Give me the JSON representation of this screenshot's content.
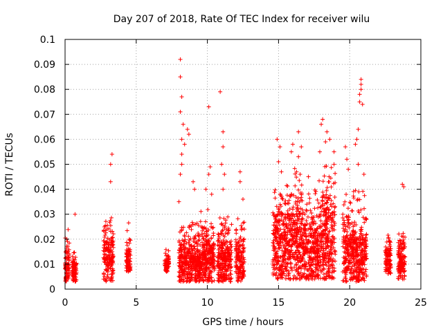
{
  "chart_data": {
    "type": "scatter",
    "title": "Day 207 of 2018, Rate Of TEC Index for receiver wilu",
    "xlabel": "GPS time / hours",
    "ylabel": "ROTI / TECUs",
    "xlim": [
      0,
      25
    ],
    "ylim": [
      0,
      0.1
    ],
    "x_ticks": [
      "0",
      "5",
      "10",
      "15",
      "20",
      "25"
    ],
    "y_ticks": [
      "0",
      "0.01",
      "0.02",
      "0.03",
      "0.04",
      "0.05",
      "0.06",
      "0.07",
      "0.08",
      "0.09",
      "0.1"
    ],
    "grid": true,
    "marker": "plus",
    "color": "#ff0000",
    "clusters": [
      {
        "x_range": [
          0.0,
          0.3
        ],
        "y_range": [
          0.003,
          0.026
        ],
        "center": 0.01
      },
      {
        "x_range": [
          0.5,
          0.8
        ],
        "y_range": [
          0.003,
          0.015
        ],
        "center": 0.008
      },
      {
        "x_range": [
          2.7,
          3.4
        ],
        "y_range": [
          0.003,
          0.029
        ],
        "center": 0.014
      },
      {
        "x_range": [
          4.3,
          4.6
        ],
        "y_range": [
          0.007,
          0.027
        ],
        "center": 0.012
      },
      {
        "x_range": [
          7.0,
          7.3
        ],
        "y_range": [
          0.007,
          0.016
        ],
        "center": 0.01
      },
      {
        "x_range": [
          8.0,
          8.5
        ],
        "y_range": [
          0.003,
          0.028
        ],
        "center": 0.012
      },
      {
        "x_range": [
          8.5,
          9.5
        ],
        "y_range": [
          0.003,
          0.028
        ],
        "center": 0.011
      },
      {
        "x_range": [
          9.5,
          10.5
        ],
        "y_range": [
          0.003,
          0.032
        ],
        "center": 0.012
      },
      {
        "x_range": [
          10.7,
          11.7
        ],
        "y_range": [
          0.003,
          0.03
        ],
        "center": 0.012
      },
      {
        "x_range": [
          12.0,
          12.6
        ],
        "y_range": [
          0.003,
          0.03
        ],
        "center": 0.011
      },
      {
        "x_range": [
          14.6,
          15.6
        ],
        "y_range": [
          0.004,
          0.043
        ],
        "center": 0.018
      },
      {
        "x_range": [
          15.6,
          16.8
        ],
        "y_range": [
          0.004,
          0.05
        ],
        "center": 0.02
      },
      {
        "x_range": [
          16.8,
          17.8
        ],
        "y_range": [
          0.004,
          0.04
        ],
        "center": 0.017
      },
      {
        "x_range": [
          17.8,
          19.0
        ],
        "y_range": [
          0.004,
          0.05
        ],
        "center": 0.02
      },
      {
        "x_range": [
          19.5,
          20.5
        ],
        "y_range": [
          0.003,
          0.04
        ],
        "center": 0.015
      },
      {
        "x_range": [
          20.5,
          21.2
        ],
        "y_range": [
          0.003,
          0.04
        ],
        "center": 0.014
      },
      {
        "x_range": [
          22.5,
          22.9
        ],
        "y_range": [
          0.006,
          0.025
        ],
        "center": 0.012
      },
      {
        "x_range": [
          23.4,
          23.9
        ],
        "y_range": [
          0.004,
          0.025
        ],
        "center": 0.011
      }
    ],
    "outliers": [
      [
        0.7,
        0.03
      ],
      [
        3.2,
        0.043
      ],
      [
        3.2,
        0.05
      ],
      [
        3.3,
        0.054
      ],
      [
        8.1,
        0.092
      ],
      [
        8.1,
        0.085
      ],
      [
        8.2,
        0.077
      ],
      [
        8.1,
        0.071
      ],
      [
        8.3,
        0.066
      ],
      [
        8.2,
        0.06
      ],
      [
        8.6,
        0.064
      ],
      [
        8.7,
        0.062
      ],
      [
        8.4,
        0.058
      ],
      [
        8.2,
        0.054
      ],
      [
        8.2,
        0.05
      ],
      [
        8.1,
        0.046
      ],
      [
        8.0,
        0.035
      ],
      [
        9.0,
        0.043
      ],
      [
        9.1,
        0.04
      ],
      [
        10.1,
        0.073
      ],
      [
        10.2,
        0.049
      ],
      [
        10.1,
        0.046
      ],
      [
        9.9,
        0.04
      ],
      [
        10.3,
        0.038
      ],
      [
        10.9,
        0.079
      ],
      [
        11.1,
        0.063
      ],
      [
        11.1,
        0.057
      ],
      [
        11.0,
        0.05
      ],
      [
        11.2,
        0.046
      ],
      [
        11.1,
        0.04
      ],
      [
        12.3,
        0.047
      ],
      [
        12.3,
        0.043
      ],
      [
        12.5,
        0.036
      ],
      [
        14.9,
        0.06
      ],
      [
        15.0,
        0.051
      ],
      [
        15.1,
        0.057
      ],
      [
        15.2,
        0.047
      ],
      [
        15.9,
        0.055
      ],
      [
        16.0,
        0.058
      ],
      [
        16.4,
        0.063
      ],
      [
        16.6,
        0.057
      ],
      [
        16.4,
        0.053
      ],
      [
        17.1,
        0.045
      ],
      [
        18.0,
        0.066
      ],
      [
        18.1,
        0.068
      ],
      [
        18.3,
        0.059
      ],
      [
        18.4,
        0.063
      ],
      [
        18.6,
        0.06
      ],
      [
        18.9,
        0.055
      ],
      [
        18.9,
        0.05
      ],
      [
        17.9,
        0.055
      ],
      [
        19.7,
        0.057
      ],
      [
        19.8,
        0.052
      ],
      [
        19.9,
        0.048
      ],
      [
        20.5,
        0.06
      ],
      [
        20.4,
        0.058
      ],
      [
        20.6,
        0.064
      ],
      [
        20.7,
        0.078
      ],
      [
        20.7,
        0.075
      ],
      [
        20.8,
        0.082
      ],
      [
        20.8,
        0.084
      ],
      [
        20.8,
        0.08
      ],
      [
        20.9,
        0.074
      ],
      [
        20.6,
        0.05
      ],
      [
        21.0,
        0.046
      ],
      [
        23.7,
        0.042
      ],
      [
        23.8,
        0.041
      ]
    ]
  }
}
